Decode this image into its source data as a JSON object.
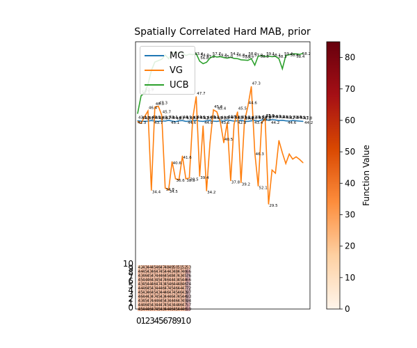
{
  "chart_data": {
    "type": "line",
    "title": "Spatially Correlated Hard MAB, prior",
    "series": [
      {
        "name": "MG",
        "color": "#1f77b4",
        "values": [
          59.1,
          59.0,
          58.9,
          59.0,
          59.2,
          59.0,
          58.9,
          59.1,
          59.0,
          59.3,
          59.0,
          58.8,
          59.1,
          59.2,
          58.9,
          59.0,
          59.1,
          59.3,
          59.0,
          58.9,
          59.1,
          59.2,
          59.0,
          58.9,
          59.1,
          59.0,
          59.4,
          59.2,
          59.0,
          59.1,
          59.3,
          59.0,
          58.9,
          59.1,
          59.2,
          59.0,
          59.4,
          59.6,
          59.3,
          59.5,
          59.4,
          59.2,
          59.3,
          59.1,
          59.0,
          59.2,
          59.1,
          59.0,
          58.9
        ]
      },
      {
        "name": "VG",
        "color": "#ff7f0e",
        "values": [
          58.9,
          58.2,
          60.5,
          62.6,
          34.4,
          64.0,
          64.3,
          61.1,
          35.2,
          34.5,
          44.6,
          38.5,
          38.2,
          46.6,
          38.5,
          38.8,
          60.0,
          67.7,
          39.4,
          57.3,
          34.2,
          51.2,
          63.0,
          62.3,
          58.7,
          51.3,
          58.4,
          37.8,
          57.9,
          62.3,
          37.1,
          58.8,
          64.3,
          71.3,
          47.9,
          35.9,
          58.4,
          59.8,
          29.5,
          41.6,
          40.5,
          52.1,
          47.7,
          43.9,
          47.3,
          45.5,
          46.3,
          45.4,
          44.2
        ]
      },
      {
        "name": "UCB",
        "color": "#2ca02c",
        "values": [
          61.7,
          68.0,
          69.0,
          72.0,
          77.0,
          80.0,
          80.5,
          81.0,
          82.5,
          81.2,
          83.3,
          83.5,
          83.2,
          83.4,
          82.3,
          82.8,
          82.6,
          83.0,
          80.3,
          79.4,
          79.9,
          81.4,
          82.1,
          81.8,
          81.9,
          81.6,
          81.4,
          81.7,
          81.3,
          81.2,
          80.8,
          80.7,
          80.6,
          81.2,
          78.9,
          82.1,
          82.2,
          82.0,
          82.1,
          81.9,
          82.0,
          81.2,
          77.6,
          82.3,
          82.6,
          82.9,
          82.9,
          82.7,
          83.1
        ]
      }
    ],
    "point_labels": {
      "MG": [
        "43.1",
        "45.5",
        "42.2",
        "44.0",
        "42.0",
        "43.4",
        "42.6",
        "45.7",
        "42.6",
        "43.1",
        "44.8",
        "43.7",
        "41.8",
        "44.1",
        "43.7",
        "44.9",
        "42.3",
        "44.6",
        "43.3",
        "42.5",
        "44.8",
        "43.1",
        "44.0",
        "43.2",
        "44.6",
        "43.4",
        "44.9",
        "43.1",
        "44.0",
        "45.1",
        "43.2",
        "41.9",
        "44.4",
        "43.6",
        "43.3",
        "41.6",
        "44.6",
        "43.0",
        "45.0",
        "44.0",
        "43.4",
        "42.8",
        "41.0",
        "43.7",
        "42.0",
        "43.8",
        "44.9",
        "43.7",
        "43.8"
      ],
      "VG": [
        "",
        "",
        "",
        "46.4",
        "34.4",
        "46.3",
        "47.3",
        "45.7",
        "34.8",
        "34.5",
        "40.6",
        "36.6",
        "",
        "41.6",
        "38.3",
        "38.5",
        "",
        "47.7",
        "39.4",
        "",
        "34.2",
        "",
        "45.6",
        "45.4",
        "",
        "40.5",
        "",
        "37.8",
        "",
        "45.5",
        "39.2",
        "37.1",
        "44.6",
        "47.3",
        "46.3",
        "52.1",
        "35.9",
        "37.9",
        "29.5",
        "",
        "",
        "",
        "",
        "",
        "",
        "",
        "",
        "",
        ""
      ],
      "UCB": [
        "",
        "52.1",
        "53.9",
        "",
        "",
        "",
        "",
        "",
        "",
        "",
        "",
        "",
        "",
        "",
        "",
        "",
        "",
        "",
        "56.8",
        "",
        "",
        "",
        "",
        "",
        "",
        "",
        "",
        "",
        "",
        "",
        "",
        "55.9",
        "",
        "",
        "",
        "",
        "",
        "",
        "",
        "",
        "",
        "",
        "",
        "",
        "",
        "",
        "",
        "",
        ""
      ]
    },
    "extra_labels": [
      "42.3",
      "43.7",
      "45.1",
      "44.6",
      "44.0",
      "43.6",
      "42.9",
      "43.4",
      "44.2",
      "44.6",
      "44.2"
    ],
    "ucb_labels": [
      "53.4",
      "54.0",
      "57.2",
      "57.7",
      "59.3",
      "55.0",
      "54.2",
      "56.8",
      "57.8",
      "58.0",
      "57.9",
      "58.8",
      "59.1",
      "58.1",
      "58.3",
      "59.4",
      "58.6",
      "58.4",
      "58.2"
    ],
    "xaxis": {
      "ticks": [
        "0",
        "1",
        "2",
        "3",
        "4",
        "5",
        "6",
        "7",
        "8",
        "9",
        "10"
      ]
    },
    "yaxis": {
      "ticks": [
        "0",
        "1",
        "2",
        "3",
        "4",
        "5",
        "6",
        "7",
        "8",
        "9",
        "10"
      ]
    },
    "legend_position": "top-left",
    "colorbar": {
      "label": "Function Value",
      "ticks": [
        "0",
        "10",
        "20",
        "30",
        "40",
        "50",
        "60",
        "70",
        "80"
      ],
      "range": [
        0,
        85
      ],
      "colors": [
        "#fff5eb",
        "#fdd0a2",
        "#fd8d3c",
        "#d94801",
        "#a50f15",
        "#67000d"
      ]
    },
    "heatmap_rows": [
      [
        "42",
        "43",
        "44",
        "45",
        "46",
        "47",
        "48",
        "49",
        "50",
        "51",
        "52",
        "53"
      ],
      [
        "44",
        "45",
        "43",
        "46",
        "47",
        "45",
        "44",
        "43",
        "48",
        "47",
        "46",
        "66"
      ],
      [
        "43",
        "46",
        "45",
        "47",
        "44",
        "46",
        "45",
        "48",
        "47",
        "43",
        "45",
        "76"
      ],
      [
        "45",
        "44",
        "46",
        "43",
        "45",
        "47",
        "46",
        "44",
        "43",
        "45",
        "44",
        "66"
      ],
      [
        "43",
        "45",
        "44",
        "46",
        "47",
        "43",
        "45",
        "46",
        "44",
        "48",
        "46",
        "74"
      ],
      [
        "44",
        "46",
        "45",
        "43",
        "44",
        "46",
        "47",
        "45",
        "46",
        "44",
        "47",
        "72"
      ],
      [
        "45",
        "43",
        "46",
        "45",
        "43",
        "44",
        "46",
        "47",
        "45",
        "46",
        "43",
        "97"
      ],
      [
        "46",
        "44",
        "43",
        "47",
        "45",
        "43",
        "44",
        "46",
        "47",
        "45",
        "44",
        "93"
      ],
      [
        "43",
        "45",
        "47",
        "44",
        "46",
        "45",
        "43",
        "44",
        "46",
        "47",
        "45",
        "94"
      ],
      [
        "44",
        "46",
        "45",
        "43",
        "44",
        "47",
        "45",
        "43",
        "44",
        "46",
        "47",
        "57"
      ],
      [
        "45",
        "44",
        "46",
        "47",
        "45",
        "43",
        "44",
        "46",
        "45",
        "44",
        "46",
        "59"
      ]
    ]
  }
}
